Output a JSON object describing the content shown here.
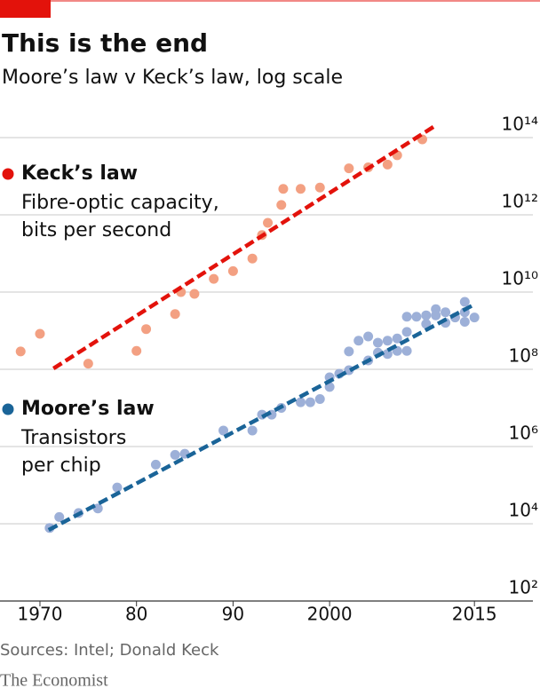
{
  "chart_data": {
    "type": "scatter",
    "title": "This is the end",
    "subtitle": "Moore’s law v Keck’s law, log scale",
    "source": "Sources: Intel; Donald Keck",
    "footer": "The Economist",
    "log_y": true,
    "grid": true,
    "xlim": [
      1966,
      2021
    ],
    "xticks": [
      1970,
      {
        "value": 1980,
        "label": "80"
      },
      {
        "value": 1990,
        "label": "90"
      },
      2000,
      2015
    ],
    "ylim": [
      100,
      100000000000000.0
    ],
    "yticks": [
      {
        "value": 100,
        "label": "10²"
      },
      {
        "value": 10000.0,
        "label": "10⁴"
      },
      {
        "value": 1000000.0,
        "label": "10⁶"
      },
      {
        "value": 100000000.0,
        "label": "10⁸"
      },
      {
        "value": 10000000000.0,
        "label": "10¹⁰"
      },
      {
        "value": 1000000000000.0,
        "label": "10¹²"
      },
      {
        "value": 100000000000000.0,
        "label": "10¹⁴"
      }
    ],
    "series": [
      {
        "name": "Keck’s law",
        "description": [
          "Fibre-optic capacity,",
          "bits per second"
        ],
        "color": "#f3a082",
        "legend_color": "#e3120b",
        "trend_color": "#e3120b",
        "x": [
          1968,
          1970,
          1975,
          1980,
          1981,
          1984,
          1984.6,
          1986,
          1988,
          1990,
          1992,
          1993,
          1993.6,
          1995,
          1995.2,
          1997,
          1999,
          2002,
          2004,
          2006,
          2007,
          2009.6
        ],
        "values": [
          290000000.0,
          830000000.0,
          140000000.0,
          300000000.0,
          1100000000.0,
          2700000000.0,
          10000000000.0,
          9000000000.0,
          22000000000.0,
          35000000000.0,
          74000000000.0,
          300000000000.0,
          620000000000.0,
          1800000000000.0,
          4700000000000.0,
          4700000000000.0,
          5100000000000.0,
          16000000000000.0,
          17000000000000.0,
          20000000000000.0,
          35000000000000.0,
          90000000000000.0
        ],
        "trend": {
          "x": [
            1971.4,
            2010.9
          ],
          "values": [
            105000000.0,
            200000000000000.0
          ]
        }
      },
      {
        "name": "Moore’s law",
        "description": [
          "Transistors",
          "per chip"
        ],
        "color": "#9db0d8",
        "legend_color": "#1a6498",
        "trend_color": "#1a6498",
        "x": [
          1971,
          1972,
          1974,
          1976,
          1978,
          1982,
          1984,
          1985,
          1989,
          1992,
          1993,
          1994,
          1995,
          1997,
          1998,
          1999,
          2000,
          2000,
          2001,
          2002,
          2002,
          2003,
          2004,
          2004,
          2005,
          2005,
          2006,
          2006,
          2007,
          2007,
          2008,
          2008,
          2008,
          2009,
          2010,
          2010,
          2011,
          2011,
          2012,
          2012,
          2013,
          2014,
          2014,
          2014,
          2015
        ],
        "values": [
          7800,
          15000,
          19000,
          25000,
          87000,
          340000,
          610000,
          650000,
          2600000.0,
          2600000.0,
          6700000.0,
          6700000.0,
          10000000.0,
          14000000.0,
          14000000.0,
          17000000.0,
          35000000.0,
          62000000.0,
          77000000.0,
          95000000.0,
          290000000.0,
          550000000.0,
          710000000.0,
          170000000.0,
          270000000.0,
          490000000.0,
          550000000.0,
          250000000.0,
          300000000.0,
          630000000.0,
          300000000.0,
          930000000.0,
          2300000000.0,
          2300000000.0,
          2500000000.0,
          1500000000.0,
          2500000000.0,
          3600000000.0,
          3000000000.0,
          1600000000.0,
          2200000000.0,
          5600000000.0,
          3000000000.0,
          1700000000.0,
          2200000000.0
        ],
        "trend": {
          "x": [
            1970.9,
            2015
          ],
          "values": [
            6900,
            4800000000.0
          ]
        }
      }
    ]
  }
}
